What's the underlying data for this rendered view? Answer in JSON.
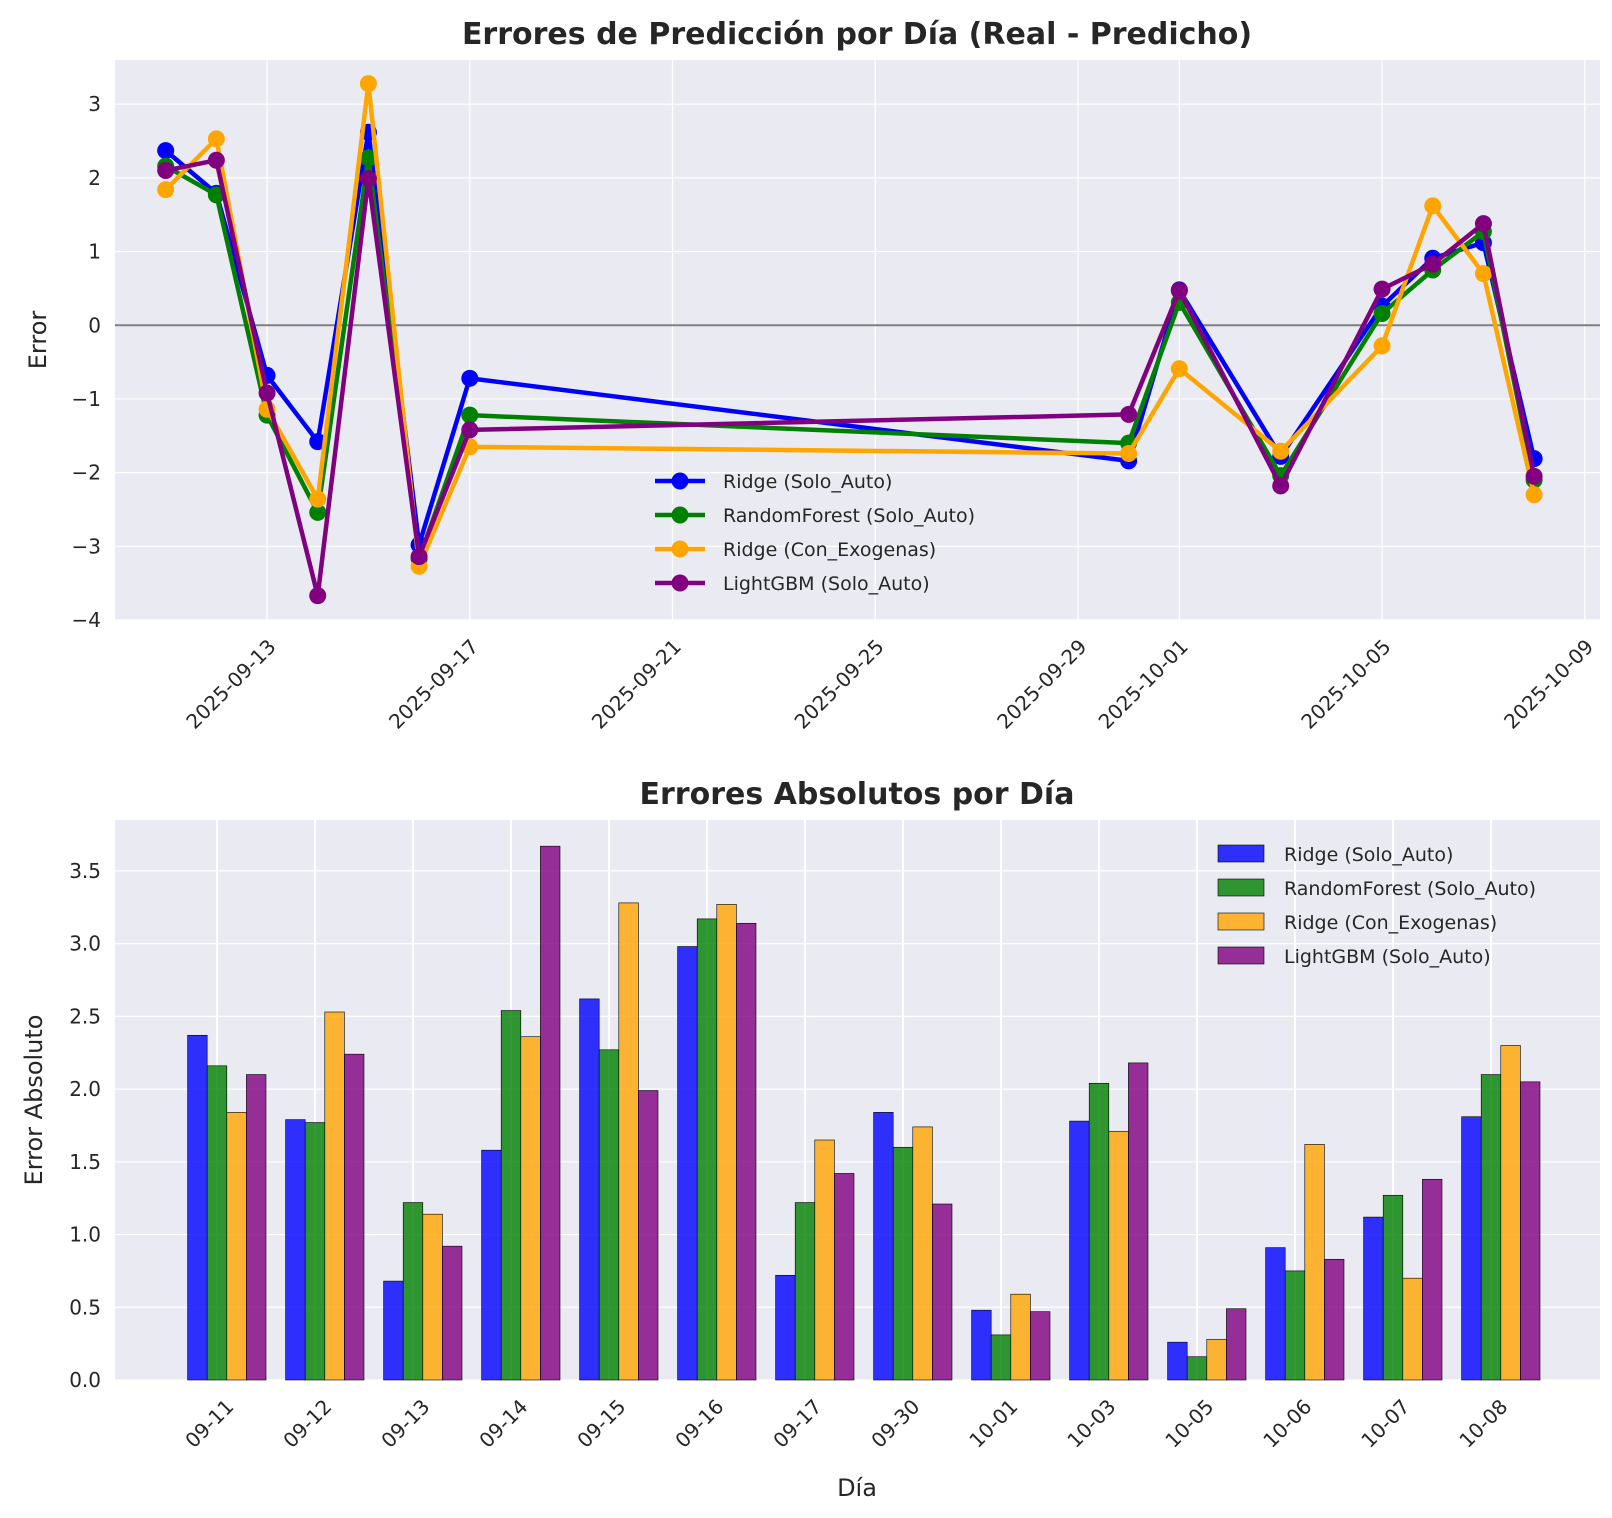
{
  "chart_data": [
    {
      "type": "line",
      "title": "Errores de Predicción por Día (Real - Predicho)",
      "xlabel": "",
      "ylabel": "Error",
      "x": [
        "2025-09-11",
        "2025-09-12",
        "2025-09-13",
        "2025-09-14",
        "2025-09-15",
        "2025-09-16",
        "2025-09-17",
        "2025-09-30",
        "2025-10-01",
        "2025-10-03",
        "2025-10-05",
        "2025-10-06",
        "2025-10-07",
        "2025-10-08"
      ],
      "xlim": [
        "2025-09-10",
        "2025-10-09"
      ],
      "xticks": [
        "2025-09-13",
        "2025-09-17",
        "2025-09-21",
        "2025-09-25",
        "2025-09-29",
        "2025-10-01",
        "2025-10-05",
        "2025-10-09"
      ],
      "ylim": [
        -4,
        3.6
      ],
      "yticks": [
        -4,
        -3,
        -2,
        -1,
        0,
        1,
        2,
        3
      ],
      "yticklabels": [
        "−4",
        "−3",
        "−2",
        "−1",
        "0",
        "1",
        "2",
        "3"
      ],
      "grid": true,
      "zero_line": true,
      "legend": "bottom-center",
      "series": [
        {
          "name": "Ridge (Solo_Auto)",
          "color": "#0000ff",
          "values": [
            2.37,
            1.79,
            -0.68,
            -1.58,
            2.62,
            -2.98,
            -0.72,
            -1.84,
            0.48,
            -1.78,
            0.26,
            0.91,
            1.12,
            -1.81
          ]
        },
        {
          "name": "RandomForest (Solo_Auto)",
          "color": "#008000",
          "values": [
            2.16,
            1.77,
            -1.22,
            -2.54,
            2.27,
            -3.17,
            -1.22,
            -1.6,
            0.31,
            -2.04,
            0.16,
            0.75,
            1.27,
            -2.1
          ]
        },
        {
          "name": "Ridge (Con_Exogenas)",
          "color": "#ffa500",
          "values": [
            1.84,
            2.53,
            -1.14,
            -2.36,
            3.28,
            -3.27,
            -1.65,
            -1.74,
            -0.59,
            -1.71,
            -0.28,
            1.62,
            0.7,
            -2.3
          ]
        },
        {
          "name": "LightGBM (Solo_Auto)",
          "color": "#800080",
          "values": [
            2.1,
            2.24,
            -0.92,
            -3.67,
            1.99,
            -3.14,
            -1.42,
            -1.21,
            0.47,
            -2.18,
            0.49,
            0.83,
            1.38,
            -2.05
          ]
        }
      ]
    },
    {
      "type": "bar",
      "title": "Errores Absolutos por Día",
      "xlabel": "Día",
      "ylabel": "Error Absoluto",
      "categories": [
        "09-11",
        "09-12",
        "09-13",
        "09-14",
        "09-15",
        "09-16",
        "09-17",
        "09-30",
        "10-01",
        "10-03",
        "10-05",
        "10-06",
        "10-07",
        "10-08"
      ],
      "ylim": [
        0,
        3.85
      ],
      "yticks": [
        "0.0",
        "0.5",
        "1.0",
        "1.5",
        "2.0",
        "2.5",
        "3.0",
        "3.5"
      ],
      "grid": true,
      "legend": "top-right",
      "series": [
        {
          "name": "Ridge (Solo_Auto)",
          "color": "#0000ff",
          "values": [
            2.37,
            1.79,
            0.68,
            1.58,
            2.62,
            2.98,
            0.72,
            1.84,
            0.48,
            1.78,
            0.26,
            0.91,
            1.12,
            1.81
          ]
        },
        {
          "name": "RandomForest (Solo_Auto)",
          "color": "#008000",
          "values": [
            2.16,
            1.77,
            1.22,
            2.54,
            2.27,
            3.17,
            1.22,
            1.6,
            0.31,
            2.04,
            0.16,
            0.75,
            1.27,
            2.1
          ]
        },
        {
          "name": "Ridge (Con_Exogenas)",
          "color": "#ffa500",
          "values": [
            1.84,
            2.53,
            1.14,
            2.36,
            3.28,
            3.27,
            1.65,
            1.74,
            0.59,
            1.71,
            0.28,
            1.62,
            0.7,
            2.3
          ]
        },
        {
          "name": "LightGBM (Solo_Auto)",
          "color": "#800080",
          "values": [
            2.1,
            2.24,
            0.92,
            3.67,
            1.99,
            3.14,
            1.42,
            1.21,
            0.47,
            2.18,
            0.49,
            0.83,
            1.38,
            2.05
          ]
        }
      ]
    }
  ]
}
